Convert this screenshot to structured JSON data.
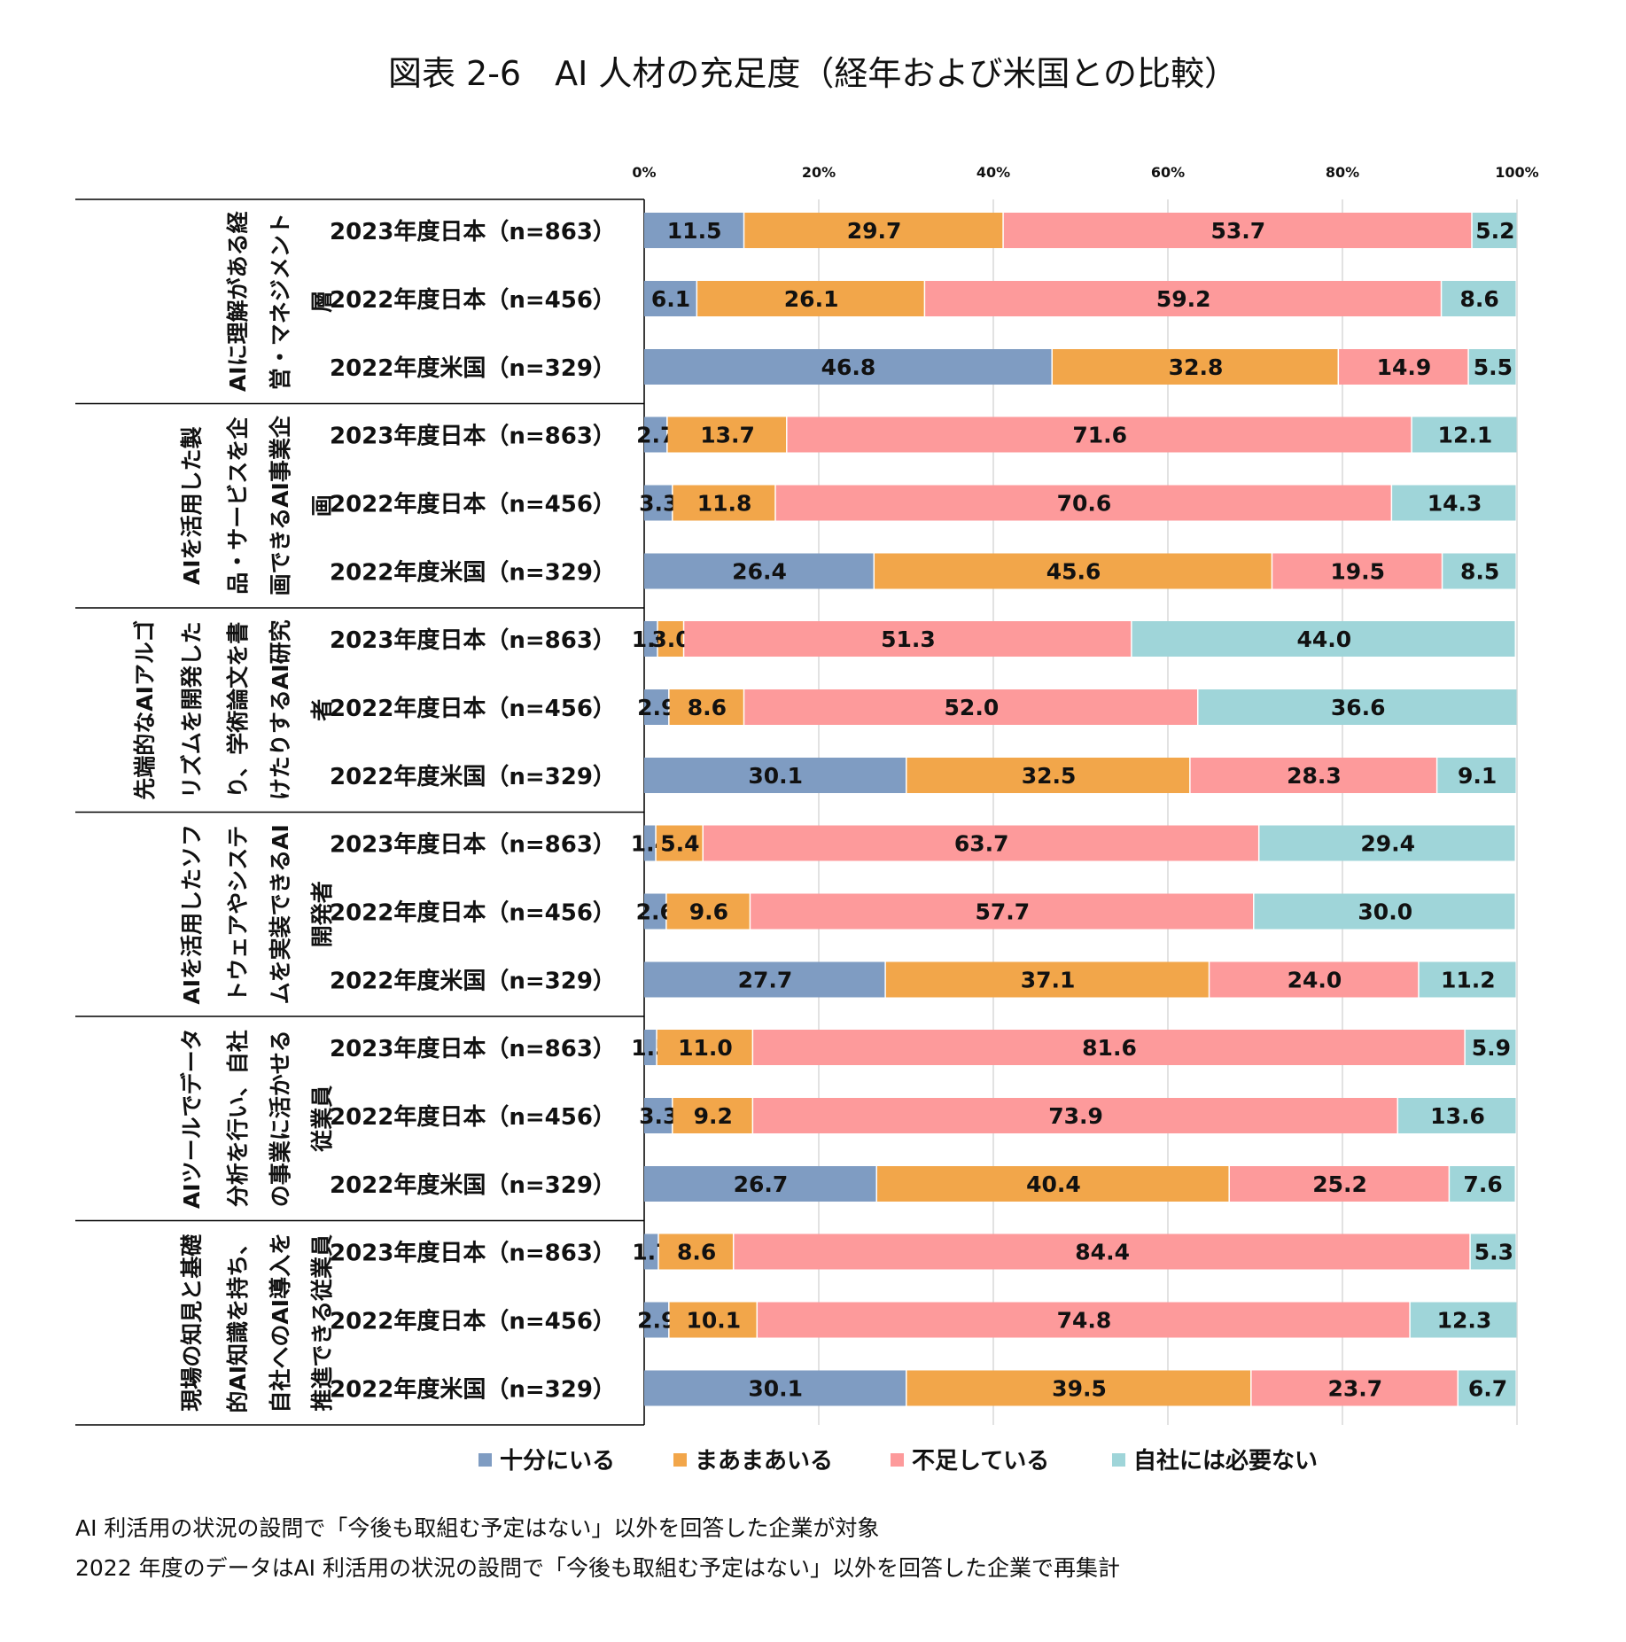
{
  "title": "図表 2-6　AI 人材の充足度（経年および米国との比較）",
  "notes": [
    "AI 利活用の状況の設問で「今後も取組む予定はない」以外を回答した企業が対象",
    "2022 年度のデータはAI 利活用の状況の設問で「今後も取組む予定はない」以外を回答した企業で再集計"
  ],
  "chart_data": {
    "type": "bar",
    "orientation": "horizontal",
    "stacked": "percent",
    "xlim": [
      0,
      100
    ],
    "x_ticks": [
      "0%",
      "20%",
      "40%",
      "60%",
      "80%",
      "100%"
    ],
    "legend_position": "bottom",
    "grid": true,
    "colors": [
      "#7F9CC2",
      "#F2A64A",
      "#FD9A9B",
      "#9FD5D9"
    ],
    "series": [
      {
        "name": "十分にいる",
        "color": "#7F9CC2"
      },
      {
        "name": "まあまあいる",
        "color": "#F2A64A"
      },
      {
        "name": "不足している",
        "color": "#FD9A9B"
      },
      {
        "name": "自社には必要ない",
        "color": "#9FD5D9"
      }
    ],
    "groups": [
      {
        "lines": [
          "AIに理解がある経",
          "営・マネジメント",
          "層"
        ],
        "rows": [
          {
            "label": "2023年度日本（n=863）",
            "values": [
              11.5,
              29.7,
              53.7,
              5.2
            ]
          },
          {
            "label": "2022年度日本（n=456）",
            "values": [
              6.1,
              26.1,
              59.2,
              8.6
            ]
          },
          {
            "label": "2022年度米国（n=329）",
            "values": [
              46.8,
              32.8,
              14.9,
              5.5
            ]
          }
        ]
      },
      {
        "lines": [
          "AIを活用した製",
          "品・サービスを企",
          "画できるAI事業企",
          "画"
        ],
        "rows": [
          {
            "label": "2023年度日本（n=863）",
            "values": [
              2.7,
              13.7,
              71.6,
              12.1
            ]
          },
          {
            "label": "2022年度日本（n=456）",
            "values": [
              3.3,
              11.8,
              70.6,
              14.3
            ]
          },
          {
            "label": "2022年度米国（n=329）",
            "values": [
              26.4,
              45.6,
              19.5,
              8.5
            ]
          }
        ]
      },
      {
        "lines": [
          "先端的なAIアルゴ",
          "リズムを開発した",
          "り、学術論文を書",
          "けたりするAI研究",
          "者"
        ],
        "rows": [
          {
            "label": "2023年度日本（n=863）",
            "values": [
              1.6,
              3.0,
              51.3,
              44.0
            ]
          },
          {
            "label": "2022年度日本（n=456）",
            "values": [
              2.9,
              8.6,
              52.0,
              36.6
            ]
          },
          {
            "label": "2022年度米国（n=329）",
            "values": [
              30.1,
              32.5,
              28.3,
              9.1
            ]
          }
        ]
      },
      {
        "lines": [
          "AIを活用したソフ",
          "トウェアやシステ",
          "ムを実装できるAI",
          "開発者"
        ],
        "rows": [
          {
            "label": "2023年度日本（n=863）",
            "values": [
              1.4,
              5.4,
              63.7,
              29.4
            ]
          },
          {
            "label": "2022年度日本（n=456）",
            "values": [
              2.6,
              9.6,
              57.7,
              30.0
            ]
          },
          {
            "label": "2022年度米国（n=329）",
            "values": [
              27.7,
              37.1,
              24.0,
              11.2
            ]
          }
        ]
      },
      {
        "lines": [
          "AIツールでデータ",
          "分析を行い、自社",
          "の事業に活かせる",
          "従業員"
        ],
        "rows": [
          {
            "label": "2023年度日本（n=863）",
            "values": [
              1.5,
              11.0,
              81.6,
              5.9
            ]
          },
          {
            "label": "2022年度日本（n=456）",
            "values": [
              3.3,
              9.2,
              73.9,
              13.6
            ]
          },
          {
            "label": "2022年度米国（n=329）",
            "values": [
              26.7,
              40.4,
              25.2,
              7.6
            ]
          }
        ]
      },
      {
        "lines": [
          "現場の知見と基礎",
          "的AI知識を持ち、",
          "自社へのAI導入を",
          "推進できる従業員"
        ],
        "rows": [
          {
            "label": "2023年度日本（n=863）",
            "values": [
              1.7,
              8.6,
              84.4,
              5.3
            ]
          },
          {
            "label": "2022年度日本（n=456）",
            "values": [
              2.9,
              10.1,
              74.8,
              12.3
            ]
          },
          {
            "label": "2022年度米国（n=329）",
            "values": [
              30.1,
              39.5,
              23.7,
              6.7
            ]
          }
        ]
      }
    ]
  }
}
